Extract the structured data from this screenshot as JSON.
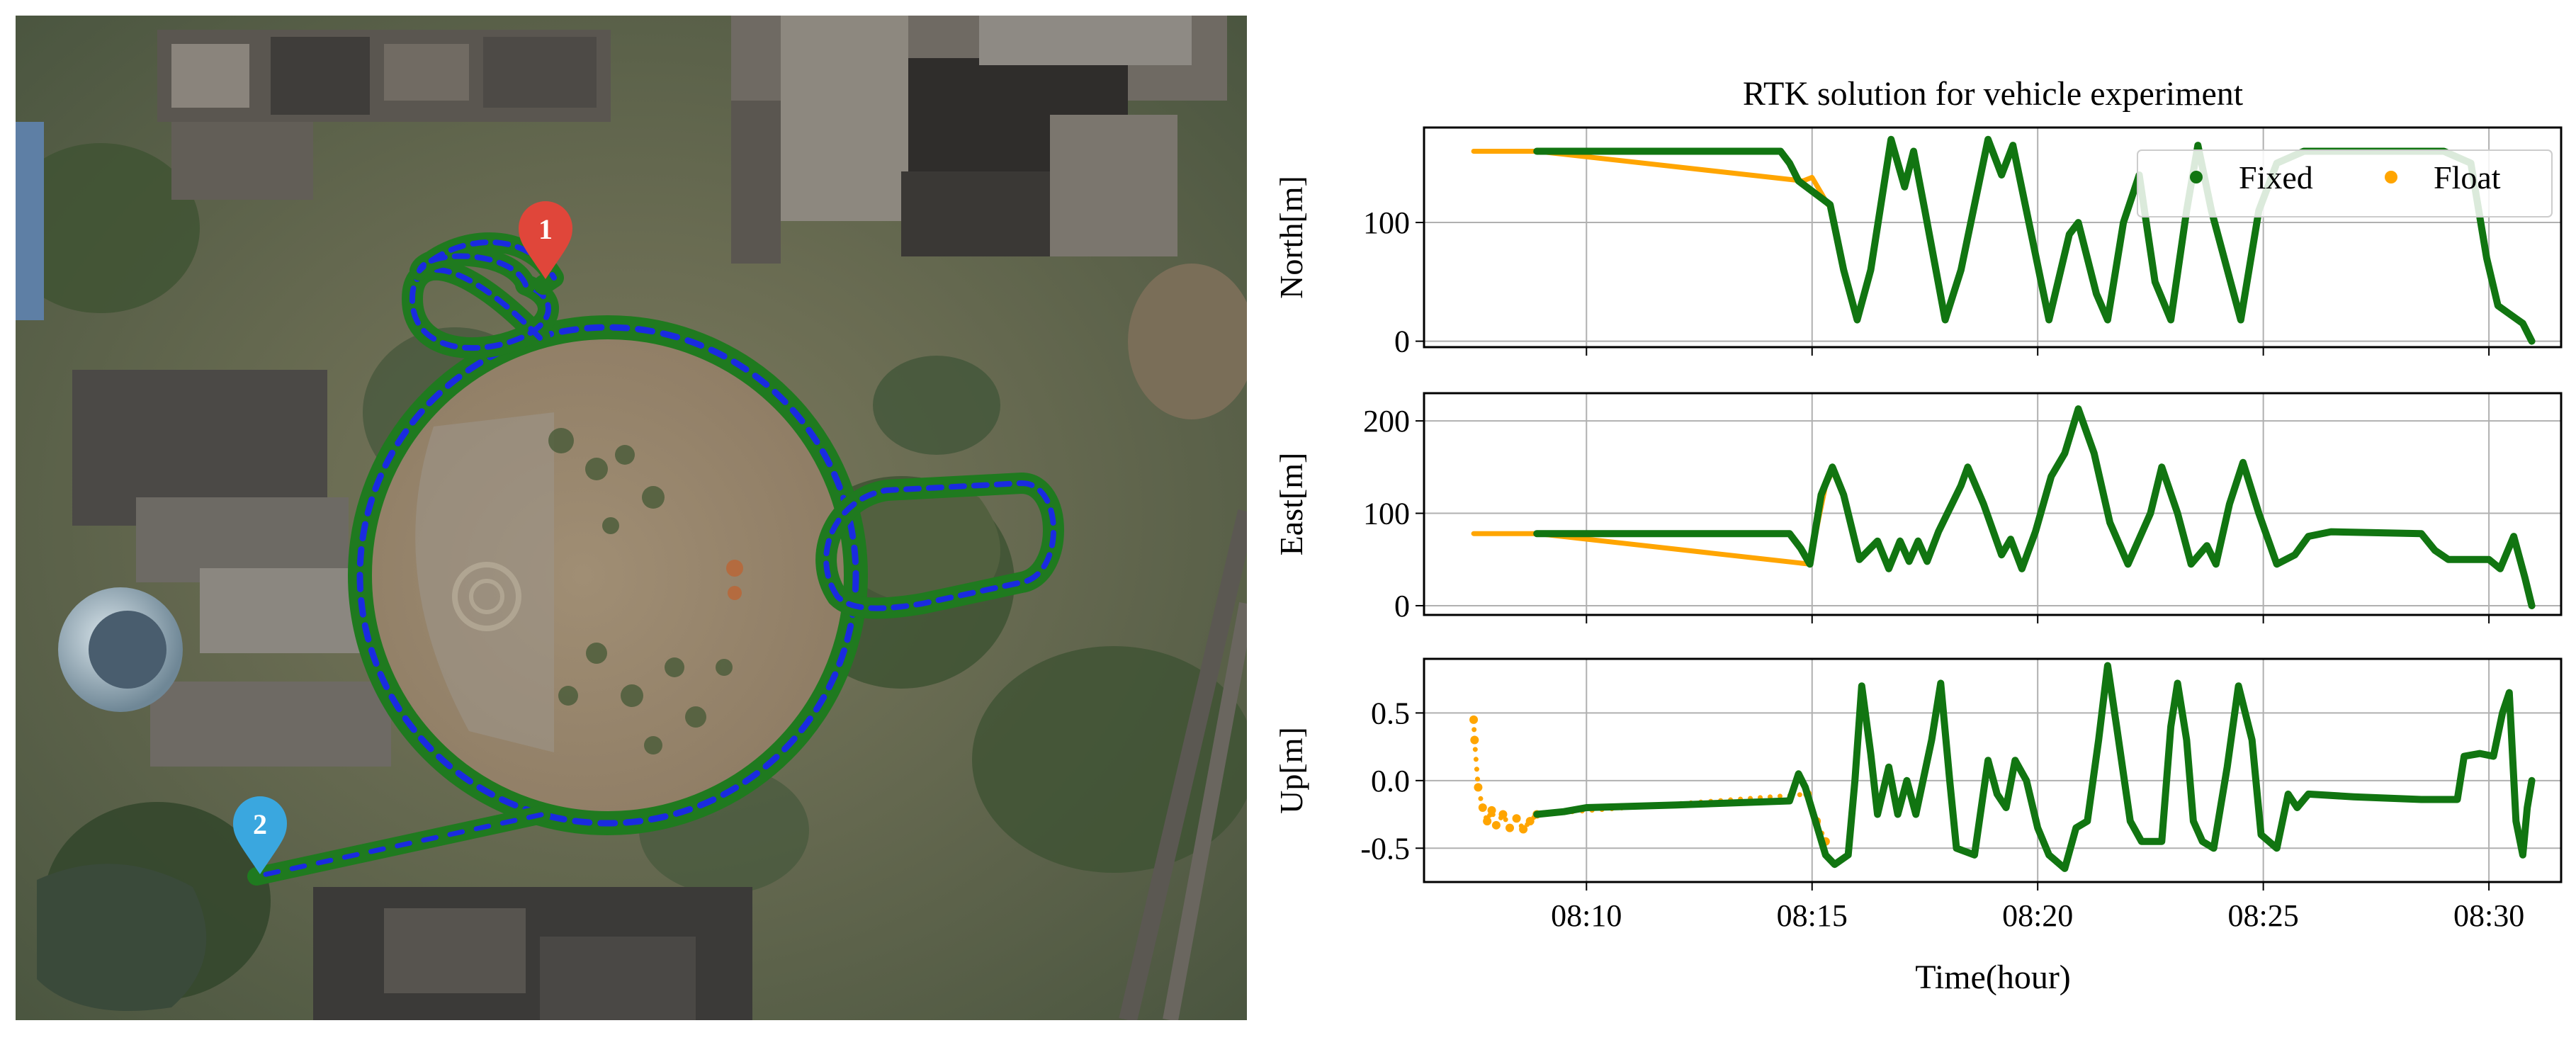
{
  "map": {
    "markers": [
      {
        "label": "1",
        "color": "#e0463a"
      },
      {
        "label": "2",
        "color": "#3aa7df"
      }
    ],
    "trajectory_colors": {
      "fixed": "#1f7a1f",
      "arrows": "#1a2be0"
    }
  },
  "chart_data": {
    "type": "line",
    "title": "RTK solution for vehicle experiment",
    "xlabel": "Time(hour)",
    "x_ticks": [
      "08:10",
      "08:15",
      "08:20",
      "08:25",
      "08:30"
    ],
    "x_tick_minutes": [
      10,
      15,
      20,
      25,
      30
    ],
    "xlim_minutes": [
      6.4,
      31.6
    ],
    "legend": {
      "position": "top-right",
      "entries": [
        {
          "label": "Fixed",
          "color": "#117511"
        },
        {
          "label": "Float",
          "color": "#ffa500"
        }
      ]
    },
    "subplots": [
      {
        "ylabel": "North[m]",
        "ylim": [
          -5,
          180
        ],
        "yticks": [
          0,
          100
        ],
        "grid": true,
        "series": [
          {
            "name": "Float",
            "points": [
              [
                7.5,
                160
              ],
              [
                8.9,
                160
              ],
              [
                14.8,
                135
              ],
              [
                15.0,
                138
              ],
              [
                15.2,
                125
              ],
              [
                15.35,
                115
              ]
            ]
          },
          {
            "name": "Fixed",
            "points": [
              [
                8.9,
                160
              ],
              [
                10,
                160
              ],
              [
                12,
                160
              ],
              [
                14.3,
                160
              ],
              [
                14.5,
                150
              ],
              [
                14.7,
                135
              ],
              [
                15.4,
                115
              ],
              [
                15.7,
                60
              ],
              [
                16.0,
                18
              ],
              [
                16.3,
                60
              ],
              [
                16.75,
                170
              ],
              [
                17.05,
                130
              ],
              [
                17.25,
                160
              ],
              [
                17.5,
                110
              ],
              [
                17.95,
                18
              ],
              [
                18.3,
                60
              ],
              [
                18.9,
                170
              ],
              [
                19.2,
                140
              ],
              [
                19.45,
                165
              ],
              [
                19.75,
                110
              ],
              [
                20.25,
                18
              ],
              [
                20.7,
                90
              ],
              [
                20.9,
                100
              ],
              [
                21.3,
                40
              ],
              [
                21.55,
                18
              ],
              [
                21.9,
                100
              ],
              [
                22.25,
                140
              ],
              [
                22.6,
                50
              ],
              [
                22.95,
                18
              ],
              [
                23.3,
                110
              ],
              [
                23.55,
                165
              ],
              [
                23.85,
                110
              ],
              [
                24.5,
                18
              ],
              [
                24.9,
                110
              ],
              [
                25.3,
                150
              ],
              [
                25.9,
                160
              ],
              [
                27.5,
                160
              ],
              [
                29.0,
                160
              ],
              [
                29.6,
                150
              ],
              [
                29.95,
                70
              ],
              [
                30.2,
                30
              ],
              [
                30.75,
                15
              ],
              [
                30.95,
                0
              ]
            ]
          }
        ]
      },
      {
        "ylabel": "East[m]",
        "ylim": [
          -10,
          230
        ],
        "yticks": [
          0,
          100,
          200
        ],
        "grid": true,
        "series": [
          {
            "name": "Float",
            "points": [
              [
                7.5,
                78
              ],
              [
                8.9,
                78
              ],
              [
                14.95,
                45
              ],
              [
                15.15,
                95
              ],
              [
                15.3,
                130
              ],
              [
                15.4,
                140
              ]
            ]
          },
          {
            "name": "Fixed",
            "points": [
              [
                8.9,
                78
              ],
              [
                12,
                78
              ],
              [
                14.5,
                78
              ],
              [
                14.75,
                62
              ],
              [
                14.95,
                45
              ],
              [
                15.2,
                120
              ],
              [
                15.45,
                150
              ],
              [
                15.7,
                120
              ],
              [
                16.05,
                50
              ],
              [
                16.45,
                70
              ],
              [
                16.7,
                40
              ],
              [
                16.95,
                70
              ],
              [
                17.15,
                48
              ],
              [
                17.35,
                70
              ],
              [
                17.55,
                48
              ],
              [
                17.8,
                80
              ],
              [
                18.3,
                130
              ],
              [
                18.45,
                150
              ],
              [
                18.8,
                110
              ],
              [
                19.2,
                55
              ],
              [
                19.4,
                72
              ],
              [
                19.65,
                40
              ],
              [
                19.95,
                80
              ],
              [
                20.3,
                140
              ],
              [
                20.6,
                165
              ],
              [
                20.9,
                213
              ],
              [
                21.25,
                165
              ],
              [
                21.6,
                90
              ],
              [
                22.0,
                45
              ],
              [
                22.5,
                100
              ],
              [
                22.75,
                150
              ],
              [
                23.1,
                100
              ],
              [
                23.4,
                45
              ],
              [
                23.75,
                65
              ],
              [
                23.95,
                45
              ],
              [
                24.25,
                110
              ],
              [
                24.55,
                155
              ],
              [
                24.9,
                100
              ],
              [
                25.3,
                45
              ],
              [
                25.7,
                55
              ],
              [
                26.0,
                75
              ],
              [
                26.5,
                80
              ],
              [
                28.5,
                78
              ],
              [
                28.8,
                60
              ],
              [
                29.1,
                50
              ],
              [
                30.0,
                50
              ],
              [
                30.25,
                40
              ],
              [
                30.55,
                75
              ],
              [
                30.8,
                30
              ],
              [
                30.95,
                0
              ]
            ]
          }
        ]
      },
      {
        "ylabel": "Up[m]",
        "ylim": [
          -0.75,
          0.9
        ],
        "yticks": [
          -0.5,
          0.0,
          0.5
        ],
        "grid": true,
        "series": [
          {
            "name": "Float",
            "points": [
              [
                7.5,
                0.45
              ],
              [
                7.52,
                0.3
              ],
              [
                7.6,
                -0.05
              ],
              [
                7.7,
                -0.2
              ],
              [
                7.8,
                -0.3
              ],
              [
                7.9,
                -0.22
              ],
              [
                8.0,
                -0.33
              ],
              [
                8.15,
                -0.25
              ],
              [
                8.3,
                -0.35
              ],
              [
                8.45,
                -0.28
              ],
              [
                8.6,
                -0.36
              ],
              [
                8.75,
                -0.3
              ],
              [
                8.9,
                -0.25
              ],
              [
                14.9,
                -0.1
              ],
              [
                15.1,
                -0.3
              ],
              [
                15.3,
                -0.45
              ]
            ]
          },
          {
            "name": "Fixed",
            "points": [
              [
                8.9,
                -0.25
              ],
              [
                9.5,
                -0.23
              ],
              [
                10,
                -0.2
              ],
              [
                12,
                -0.18
              ],
              [
                14.5,
                -0.15
              ],
              [
                14.7,
                0.05
              ],
              [
                14.85,
                -0.05
              ],
              [
                15.3,
                -0.55
              ],
              [
                15.5,
                -0.62
              ],
              [
                15.8,
                -0.55
              ],
              [
                15.95,
                0.0
              ],
              [
                16.1,
                0.7
              ],
              [
                16.3,
                0.2
              ],
              [
                16.45,
                -0.25
              ],
              [
                16.7,
                0.1
              ],
              [
                16.9,
                -0.25
              ],
              [
                17.1,
                0.0
              ],
              [
                17.3,
                -0.25
              ],
              [
                17.65,
                0.3
              ],
              [
                17.85,
                0.72
              ],
              [
                18.05,
                0.0
              ],
              [
                18.2,
                -0.5
              ],
              [
                18.6,
                -0.55
              ],
              [
                18.9,
                0.15
              ],
              [
                19.1,
                -0.1
              ],
              [
                19.3,
                -0.2
              ],
              [
                19.5,
                0.15
              ],
              [
                19.75,
                0.0
              ],
              [
                20.0,
                -0.35
              ],
              [
                20.25,
                -0.55
              ],
              [
                20.6,
                -0.65
              ],
              [
                20.85,
                -0.35
              ],
              [
                21.1,
                -0.3
              ],
              [
                21.35,
                0.3
              ],
              [
                21.55,
                0.85
              ],
              [
                21.75,
                0.4
              ],
              [
                22.05,
                -0.3
              ],
              [
                22.3,
                -0.45
              ],
              [
                22.75,
                -0.45
              ],
              [
                22.95,
                0.4
              ],
              [
                23.1,
                0.72
              ],
              [
                23.3,
                0.3
              ],
              [
                23.45,
                -0.3
              ],
              [
                23.65,
                -0.45
              ],
              [
                23.9,
                -0.5
              ],
              [
                24.2,
                0.1
              ],
              [
                24.45,
                0.7
              ],
              [
                24.75,
                0.3
              ],
              [
                24.95,
                -0.4
              ],
              [
                25.3,
                -0.5
              ],
              [
                25.55,
                -0.1
              ],
              [
                25.75,
                -0.2
              ],
              [
                26.0,
                -0.1
              ],
              [
                27.0,
                -0.12
              ],
              [
                28.5,
                -0.14
              ],
              [
                29.3,
                -0.14
              ],
              [
                29.45,
                0.18
              ],
              [
                29.8,
                0.2
              ],
              [
                30.1,
                0.18
              ],
              [
                30.3,
                0.5
              ],
              [
                30.45,
                0.65
              ],
              [
                30.6,
                -0.3
              ],
              [
                30.75,
                -0.55
              ],
              [
                30.85,
                -0.2
              ],
              [
                30.95,
                0.0
              ]
            ]
          }
        ]
      }
    ]
  }
}
